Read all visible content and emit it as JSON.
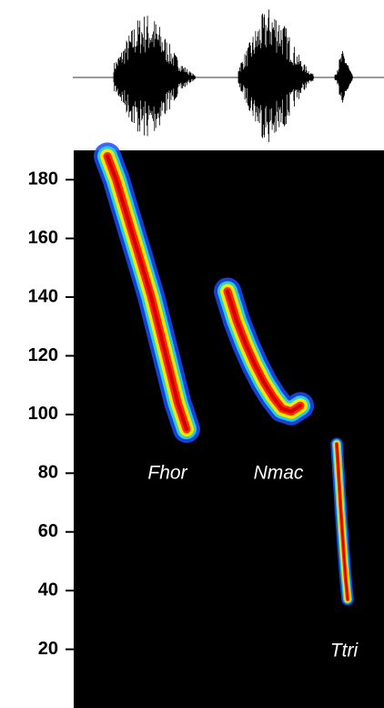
{
  "chart_data": {
    "type": "spectrogram",
    "ylim": [
      0,
      190
    ],
    "yticks": [
      20,
      40,
      60,
      80,
      100,
      120,
      140,
      160,
      180
    ],
    "colormap": [
      "#1a4cff",
      "#22d0e0",
      "#f5e800",
      "#ff2a00",
      "#d40000"
    ],
    "background": "#000000",
    "series": [
      {
        "name": "Fhor",
        "values": [
          188,
          180,
          170,
          160,
          150,
          140,
          128,
          116,
          104,
          95
        ]
      },
      {
        "name": "Nmac",
        "values": [
          142,
          132,
          124,
          117,
          111,
          106,
          102,
          101,
          103
        ]
      },
      {
        "name": "Ttri",
        "values": [
          90,
          78,
          66,
          55,
          45,
          37
        ]
      }
    ]
  }
}
